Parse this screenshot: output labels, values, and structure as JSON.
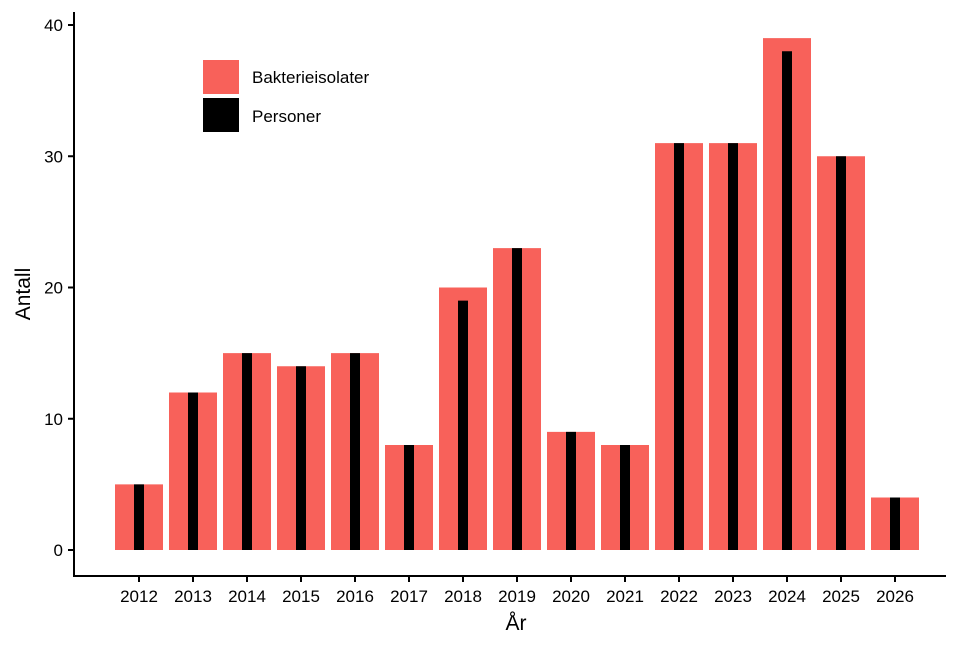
{
  "chart_data": {
    "type": "bar",
    "title": "",
    "xlabel": "År",
    "ylabel": "Antall",
    "ylim": [
      0,
      40
    ],
    "yticks": [
      0,
      10,
      20,
      30,
      40
    ],
    "grid": false,
    "legend_position": "top-left",
    "categories": [
      "2012",
      "2013",
      "2014",
      "2015",
      "2016",
      "2017",
      "2018",
      "2019",
      "2020",
      "2021",
      "2022",
      "2023",
      "2024",
      "2025",
      "2026"
    ],
    "series": [
      {
        "name": "Bakterieisolater",
        "color": "#F8615A",
        "values": [
          5,
          12,
          15,
          14,
          15,
          8,
          20,
          23,
          9,
          8,
          31,
          31,
          39,
          30,
          4
        ]
      },
      {
        "name": "Personer",
        "color": "#000000",
        "values": [
          5,
          12,
          15,
          14,
          15,
          8,
          19,
          23,
          9,
          8,
          31,
          31,
          38,
          30,
          4
        ]
      }
    ]
  }
}
